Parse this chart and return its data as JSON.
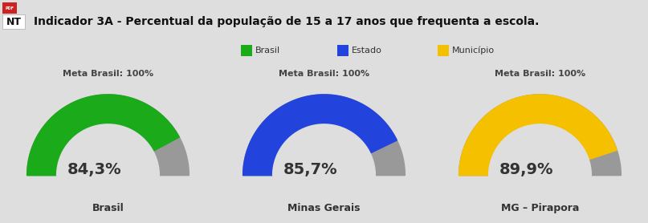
{
  "title": "Indicador 3A - Percentual da população de 15 a 17 anos que frequenta a escola.",
  "gauges": [
    {
      "value": 84.3,
      "max": 100,
      "color": "#1aaa1a",
      "label": "Brasil",
      "meta_label": "Meta Brasil: 100%",
      "value_str": "84,3%"
    },
    {
      "value": 85.7,
      "max": 100,
      "color": "#2244dd",
      "label": "Minas Gerais",
      "meta_label": "Meta Brasil: 100%",
      "value_str": "85,7%"
    },
    {
      "value": 89.9,
      "max": 100,
      "color": "#f5c000",
      "label": "MG – Pirapora",
      "meta_label": "Meta Brasil: 100%",
      "value_str": "89,9%"
    }
  ],
  "legend": [
    {
      "label": "Brasil",
      "color": "#1aaa1a"
    },
    {
      "label": "Estado",
      "color": "#2244dd"
    },
    {
      "label": "Município",
      "color": "#f5c000"
    }
  ],
  "bg_color": "#dedede",
  "header_bg": "#f2f2f2",
  "gauge_track_color": "#999999",
  "nt_box_color": "#cc0000"
}
